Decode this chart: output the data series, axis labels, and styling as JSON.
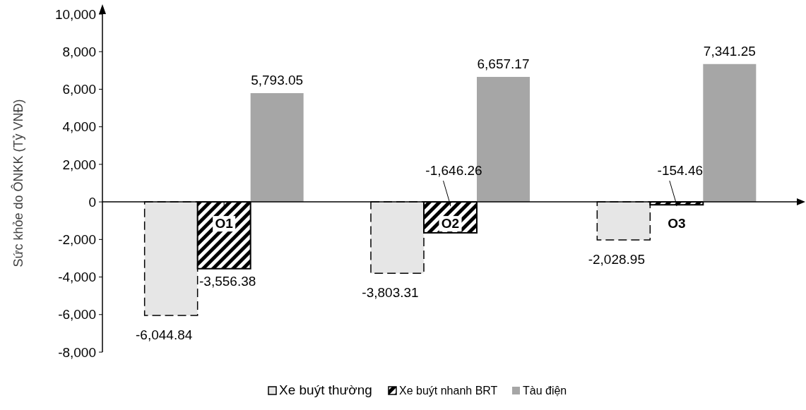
{
  "chart_data": {
    "type": "bar",
    "ylabel": "Sức khỏe do ÔNKK (Tỷ VNĐ)",
    "categories": [
      "O1",
      "O2",
      "O3"
    ],
    "series": [
      {
        "name": "Xe buýt thường",
        "color": "#e6e6e6",
        "values": [
          -6044.84,
          -3803.31,
          -2028.95
        ],
        "value_labels": [
          "-6,044.84",
          "-3,803.31",
          "-2,028.95"
        ]
      },
      {
        "name": "Xe buýt nhanh BRT",
        "color": "#000000",
        "values": [
          -3556.38,
          -1646.26,
          -154.46
        ],
        "value_labels": [
          "-3,556.38",
          "-1,646.26",
          "-154.46"
        ]
      },
      {
        "name": "Tàu điện",
        "color": "#a6a6a6",
        "values": [
          5793.05,
          6657.17,
          7341.25
        ],
        "value_labels": [
          "5,793.05",
          "6,657.17",
          "7,341.25"
        ]
      }
    ],
    "ylim": [
      -8000,
      10000
    ],
    "yticks": [
      {
        "value": -8000,
        "label": "-8,000"
      },
      {
        "value": -6000,
        "label": "-6,000"
      },
      {
        "value": -4000,
        "label": "-4,000"
      },
      {
        "value": -2000,
        "label": "-2,000"
      },
      0,
      {
        "value": 2000,
        "label": "2,000"
      },
      {
        "value": 4000,
        "label": "4,000"
      },
      {
        "value": 6000,
        "label": "6,000"
      },
      {
        "value": 8000,
        "label": "8,000"
      },
      {
        "value": 10000,
        "label": "10,000"
      }
    ],
    "grid": false,
    "legend": "bottom"
  }
}
